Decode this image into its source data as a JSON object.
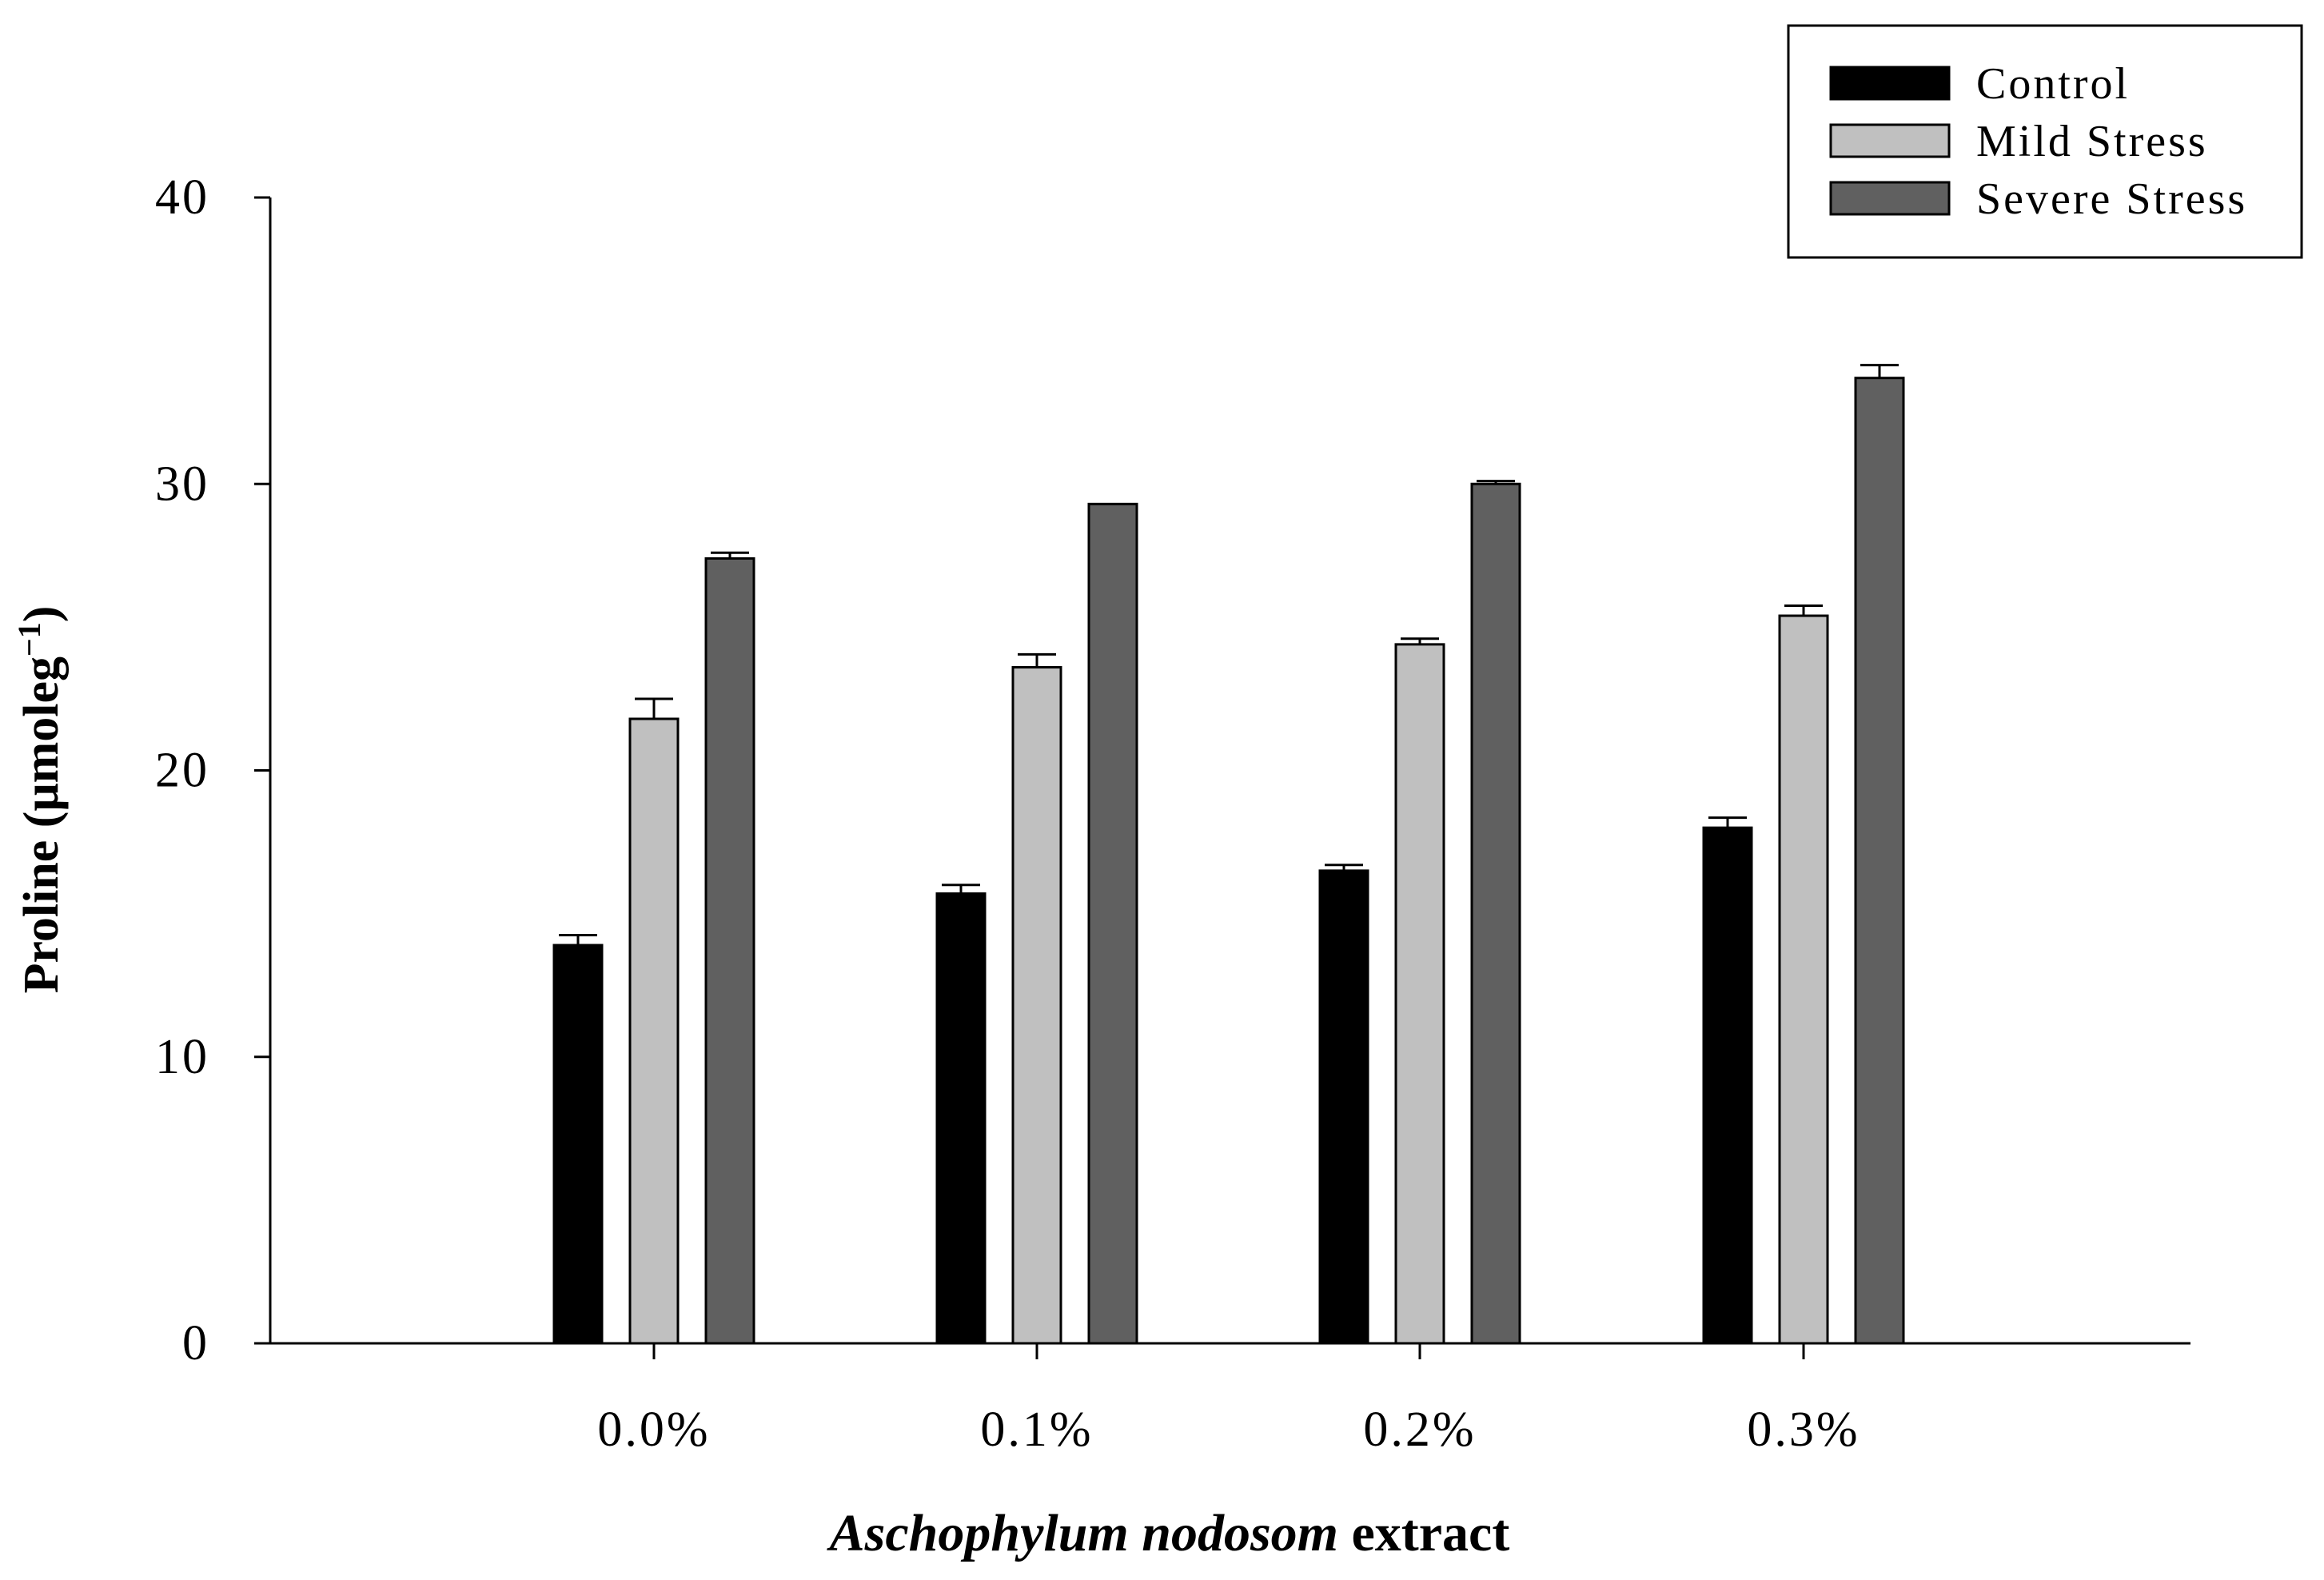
{
  "chart_data": {
    "type": "bar",
    "title": "",
    "categories": [
      "0.0%",
      "0.1%",
      "0.2%",
      "0.3%"
    ],
    "series": [
      {
        "name": "Control",
        "color": "#000000",
        "values": [
          13.9,
          15.7,
          16.5,
          18.0
        ],
        "errors": [
          0.35,
          0.3,
          0.2,
          0.35
        ]
      },
      {
        "name": "Mild Stress",
        "color": "#c0c0c0",
        "values": [
          21.8,
          23.6,
          24.4,
          25.4
        ],
        "errors": [
          0.7,
          0.45,
          0.2,
          0.35
        ]
      },
      {
        "name": "Severe Stress",
        "color": "#606060",
        "values": [
          27.4,
          29.3,
          30.0,
          33.7
        ],
        "errors": [
          0.2,
          0.0,
          0.1,
          0.45
        ]
      }
    ],
    "xlabel_italic": "Aschophylum nodosom",
    "xlabel_rest": " extract",
    "ylabel_prefix": "Proline (μmoleg",
    "ylabel_sup": "−1",
    "ylabel_suffix": ")",
    "ylim": [
      0,
      40
    ],
    "yticks": [
      0,
      10,
      20,
      30,
      40
    ],
    "grid": false,
    "legend_position": "top-right"
  }
}
